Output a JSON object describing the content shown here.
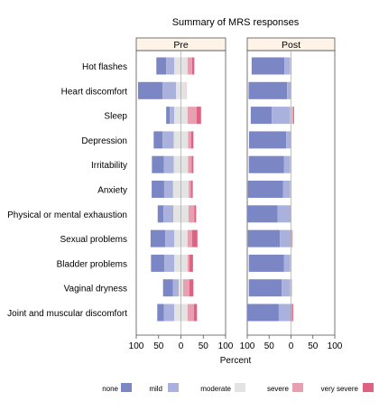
{
  "chart_data": {
    "type": "bar",
    "stacked": true,
    "diverging": true,
    "title": "Summary of MRS responses",
    "xlabel": "Percent",
    "panels": [
      "Pre",
      "Post"
    ],
    "xlim": [
      -100,
      100
    ],
    "xticks": [
      -100,
      -50,
      0,
      50,
      100
    ],
    "xtick_labels": [
      "100",
      "50",
      "0",
      "50",
      "100"
    ],
    "categories": [
      "Hot flashes",
      "Heart discomfort",
      "Sleep",
      "Depression",
      "Irritability",
      "Anxiety",
      "Physical or mental exhaustion",
      "Sexual problems",
      "Bladder problems",
      "Vaginal dryness",
      "Joint and muscular discomfort"
    ],
    "series": [
      {
        "name": "none",
        "color": "#7b86c4",
        "pre": [
          22,
          55,
          8,
          20,
          27,
          28,
          13,
          33,
          30,
          22,
          15
        ],
        "post": [
          75,
          88,
          48,
          85,
          80,
          80,
          70,
          73,
          80,
          75,
          72
        ]
      },
      {
        "name": "mild",
        "color": "#aab1dc",
        "pre": [
          18,
          30,
          10,
          25,
          22,
          20,
          22,
          20,
          22,
          13,
          23
        ],
        "post": [
          13,
          8,
          42,
          10,
          15,
          17,
          30,
          25,
          15,
          20,
          28
        ]
      },
      {
        "name": "moderate",
        "color": "#e3e3e3",
        "pre": [
          30,
          22,
          30,
          32,
          32,
          35,
          34,
          30,
          30,
          10,
          30
        ],
        "post": [
          4,
          2,
          4,
          2,
          3,
          3,
          1,
          1,
          3,
          3,
          0
        ]
      },
      {
        "name": "severe",
        "color": "#e8a0b0",
        "pre": [
          10,
          1,
          20,
          7,
          8,
          5,
          13,
          10,
          4,
          14,
          14
        ],
        "post": [
          0,
          0,
          3,
          0,
          0,
          0,
          0,
          2,
          0,
          1,
          3
        ]
      },
      {
        "name": "very severe",
        "color": "#de6383",
        "pre": [
          5,
          0,
          10,
          5,
          4,
          4,
          4,
          12,
          8,
          9,
          7
        ],
        "post": [
          0,
          0,
          2,
          0,
          0,
          0,
          0,
          1,
          0,
          0,
          2
        ]
      }
    ],
    "legend": {
      "position": "bottom",
      "labels": [
        "none",
        "mild",
        "moderate",
        "severe",
        "very severe"
      ]
    },
    "grid": false
  }
}
